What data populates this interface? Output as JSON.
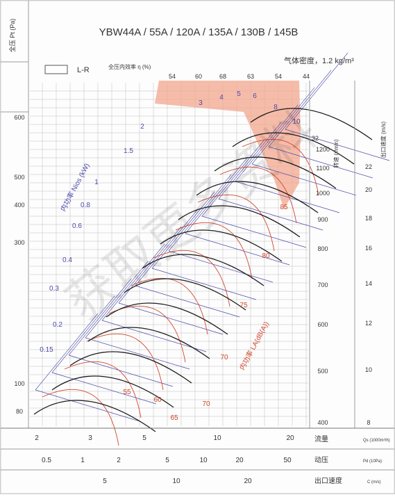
{
  "header": {
    "title": "YBW44A / 55A / 120A / 135A / 130B / 145B",
    "density_label": "气体密度，1.2 kg/m³",
    "legend_box_label": "L-R",
    "efficiency_label": "全压内效率 η (%)",
    "y_axis_label": "全压 Pt (Pa)"
  },
  "chart_data": {
    "type": "line",
    "title": "YBW44A / 55A / 120A / 135A / 130B / 145B",
    "left_axis": {
      "label": "全压 Pt (Pa)",
      "ticks": [
        "600",
        "500",
        "400",
        "300",
        "100",
        "80"
      ]
    },
    "efficiency_ticks": [
      "54",
      "60",
      "68",
      "63",
      "54",
      "44"
    ],
    "speed_axis": {
      "label": "转速 (r/min)",
      "ticks": [
        "1200",
        "1100",
        "1000",
        "900",
        "800",
        "700",
        "600",
        "500",
        "400"
      ]
    },
    "outlet_velocity_axis": {
      "label": "出口速度 (m/s)",
      "ticks": [
        "32",
        "22",
        "20",
        "18",
        "16",
        "14",
        "12",
        "10",
        "8"
      ]
    },
    "flow_axis": {
      "label": "流量",
      "unit": "Qs (1000m³/h)",
      "ticks": [
        "2",
        "3",
        "5",
        "10",
        "20"
      ]
    },
    "pressure_axis": {
      "label": "动压",
      "unit": "Pd (10Pa)",
      "ticks": [
        "0.5",
        "1",
        "2",
        "5",
        "10",
        "20",
        "50"
      ]
    },
    "velocity_axis": {
      "label": "出口速度",
      "unit": "C (m/s)",
      "ticks": [
        "5",
        "10",
        "20"
      ]
    },
    "power_series": {
      "name": "内功率 Nios (kW)",
      "labels": [
        "0.15",
        "0.2",
        "0.3",
        "0.4",
        "0.6",
        "0.8",
        "1",
        "1.5",
        "2",
        "3",
        "4",
        "5",
        "6",
        "8",
        "10"
      ]
    },
    "noise_series": {
      "name": "内功率 LA(dB(A))",
      "labels": [
        "55",
        "60",
        "65",
        "70",
        "70",
        "75",
        "80",
        "85"
      ]
    },
    "colors": {
      "blue_lines": "#4a4aa8",
      "red_lines": "#d0452c",
      "black_curves": "#1a1a1a",
      "high_zone_fill": "#f3a58e",
      "grid": "#bdbdbd"
    }
  },
  "watermark": "获取更多资料"
}
